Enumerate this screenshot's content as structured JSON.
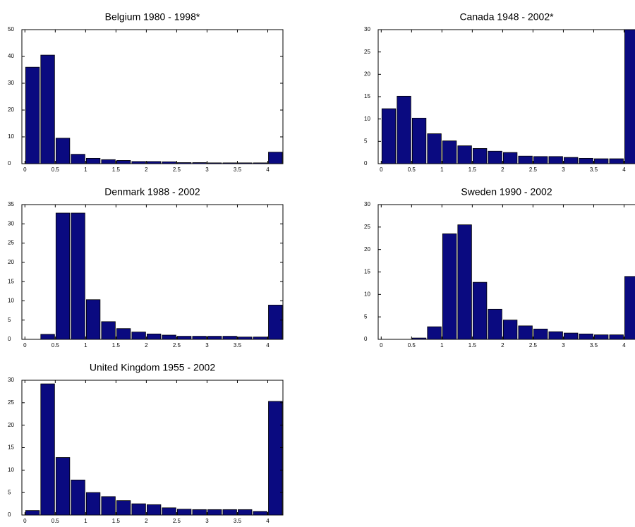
{
  "chart_data": [
    {
      "type": "histogram",
      "title": "Belgium 1980 - 1998*",
      "color": "#0a0a80",
      "bins": [
        0,
        0.25,
        0.5,
        0.75,
        1,
        1.25,
        1.5,
        1.75,
        2,
        2.25,
        2.5,
        2.75,
        3,
        3.25,
        3.5,
        3.75,
        4,
        4.25
      ],
      "values": [
        36,
        40.5,
        9.5,
        3.5,
        2,
        1.5,
        1.2,
        0.8,
        0.8,
        0.7,
        0.4,
        0.4,
        0.3,
        0.3,
        0.3,
        0.3,
        4.3
      ],
      "xlim": [
        -0.05,
        4.25
      ],
      "xticks": [
        0,
        0.5,
        1,
        1.5,
        2,
        2.5,
        3,
        3.5,
        4
      ],
      "ylim": [
        0,
        50
      ],
      "yticks": [
        0,
        10,
        20,
        30,
        40,
        50
      ]
    },
    {
      "type": "histogram",
      "title": "Canada 1948 - 2002*",
      "color": "#0a0a80",
      "bins": [
        0,
        0.25,
        0.5,
        0.75,
        1,
        1.25,
        1.5,
        1.75,
        2,
        2.25,
        2.5,
        2.75,
        3,
        3.25,
        3.5,
        3.75,
        4,
        4.25
      ],
      "values": [
        12.3,
        15.1,
        10.2,
        6.7,
        5.1,
        4,
        3.4,
        2.8,
        2.5,
        1.7,
        1.6,
        1.6,
        1.4,
        1.2,
        1.1,
        1.1,
        30
      ],
      "xlim": [
        -0.05,
        4.25
      ],
      "xticks": [
        0,
        0.5,
        1,
        1.5,
        2,
        2.5,
        3,
        3.5,
        4
      ],
      "ylim": [
        0,
        30
      ],
      "yticks": [
        0,
        5,
        10,
        15,
        20,
        25,
        30
      ]
    },
    {
      "type": "histogram",
      "title": "Denmark 1988 - 2002",
      "color": "#0a0a80",
      "bins": [
        0,
        0.25,
        0.5,
        0.75,
        1,
        1.25,
        1.5,
        1.75,
        2,
        2.25,
        2.5,
        2.75,
        3,
        3.25,
        3.5,
        3.75,
        4,
        4.25
      ],
      "values": [
        0,
        1.3,
        32.8,
        32.8,
        10.3,
        4.6,
        2.8,
        1.9,
        1.4,
        1.1,
        0.8,
        0.8,
        0.8,
        0.8,
        0.6,
        0.6,
        8.9
      ],
      "xlim": [
        -0.05,
        4.25
      ],
      "xticks": [
        0,
        0.5,
        1,
        1.5,
        2,
        2.5,
        3,
        3.5,
        4
      ],
      "ylim": [
        0,
        35
      ],
      "yticks": [
        0,
        5,
        10,
        15,
        20,
        25,
        30,
        35
      ]
    },
    {
      "type": "histogram",
      "title": "Sweden 1990 - 2002",
      "color": "#0a0a80",
      "bins": [
        0,
        0.25,
        0.5,
        0.75,
        1,
        1.25,
        1.5,
        1.75,
        2,
        2.25,
        2.5,
        2.75,
        3,
        3.25,
        3.5,
        3.75,
        4,
        4.25
      ],
      "values": [
        0,
        0,
        0.3,
        2.8,
        23.5,
        25.5,
        12.7,
        6.7,
        4.3,
        3,
        2.3,
        1.7,
        1.4,
        1.2,
        1,
        1,
        14
      ],
      "xlim": [
        -0.05,
        4.25
      ],
      "xticks": [
        0,
        0.5,
        1,
        1.5,
        2,
        2.5,
        3,
        3.5,
        4
      ],
      "ylim": [
        0,
        30
      ],
      "yticks": [
        0,
        5,
        10,
        15,
        20,
        25,
        30
      ]
    },
    {
      "type": "histogram",
      "title": "United Kingdom 1955 - 2002",
      "color": "#0a0a80",
      "bins": [
        0,
        0.25,
        0.5,
        0.75,
        1,
        1.25,
        1.5,
        1.75,
        2,
        2.25,
        2.5,
        2.75,
        3,
        3.25,
        3.5,
        3.75,
        4,
        4.25
      ],
      "values": [
        1,
        29.2,
        12.8,
        7.8,
        5,
        4.1,
        3.2,
        2.5,
        2.3,
        1.6,
        1.3,
        1.2,
        1.2,
        1.2,
        1.2,
        0.8,
        25.3
      ],
      "xlim": [
        -0.05,
        4.25
      ],
      "xticks": [
        0,
        0.5,
        1,
        1.5,
        2,
        2.5,
        3,
        3.5,
        4
      ],
      "ylim": [
        0,
        30
      ],
      "yticks": [
        0,
        5,
        10,
        15,
        20,
        25,
        30
      ]
    }
  ]
}
